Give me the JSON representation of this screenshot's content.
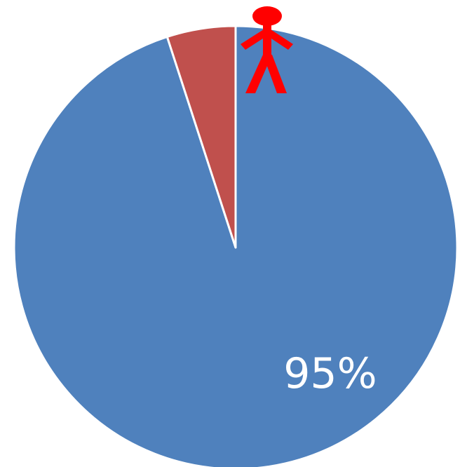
{
  "chart_data": {
    "type": "pie",
    "title": "",
    "slices": [
      {
        "label": "95%",
        "value": 95,
        "color": "#4f81bd"
      },
      {
        "label": "",
        "value": 5,
        "color": "#c0504d"
      }
    ],
    "start_angle_deg": 0,
    "direction": "clockwise",
    "legend": "none"
  },
  "icons": {
    "figure": {
      "name": "person-icon",
      "color": "#ff0000"
    }
  }
}
